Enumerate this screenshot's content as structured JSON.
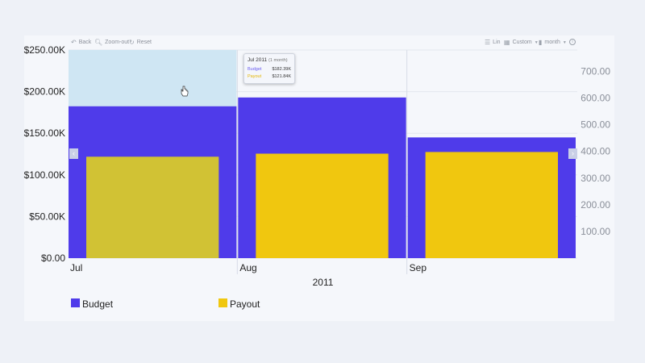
{
  "toolbar": {
    "back_label": "Back",
    "zoom_out_label": "Zoom-out",
    "reset_label": "Reset",
    "lin_label": "Lin",
    "custom_label": "Custom",
    "month_label": "month",
    "info_icon": "info-icon"
  },
  "tooltip": {
    "title": "Jul 2011",
    "range": "(1 month)",
    "rows": [
      {
        "label": "Budget",
        "value": "$182.39K"
      },
      {
        "label": "Payout",
        "value": "$121.84K"
      }
    ]
  },
  "colors": {
    "budget": "#4f3bea",
    "payout": "#f0c70f",
    "payout_hover": "#d1c234",
    "selection": "#cfe6f3"
  },
  "chart_data": {
    "type": "bar",
    "xlabel": "2011",
    "categories": [
      "Jul",
      "Aug",
      "Sep"
    ],
    "series": [
      {
        "name": "Budget",
        "axis": "left",
        "values": [
          182390,
          193000,
          145000
        ]
      },
      {
        "name": "Payout",
        "axis": "left",
        "values": [
          121840,
          125500,
          127500
        ]
      }
    ],
    "y_left": {
      "min": 0,
      "max": 250000,
      "ticks": [
        "$0.00",
        "$50.00K",
        "$100.00K",
        "$150.00K",
        "$200.00K",
        "$250.00K"
      ]
    },
    "y_right": {
      "min": 0,
      "max": 780,
      "ticks": [
        "100.00",
        "200.00",
        "300.00",
        "400.00",
        "500.00",
        "600.00",
        "700.00"
      ],
      "tick_values": [
        100,
        200,
        300,
        400,
        500,
        600,
        700
      ]
    },
    "hovered_category": "Jul",
    "legend": {
      "position": "bottom-left",
      "items": [
        "Budget",
        "Payout"
      ]
    }
  }
}
